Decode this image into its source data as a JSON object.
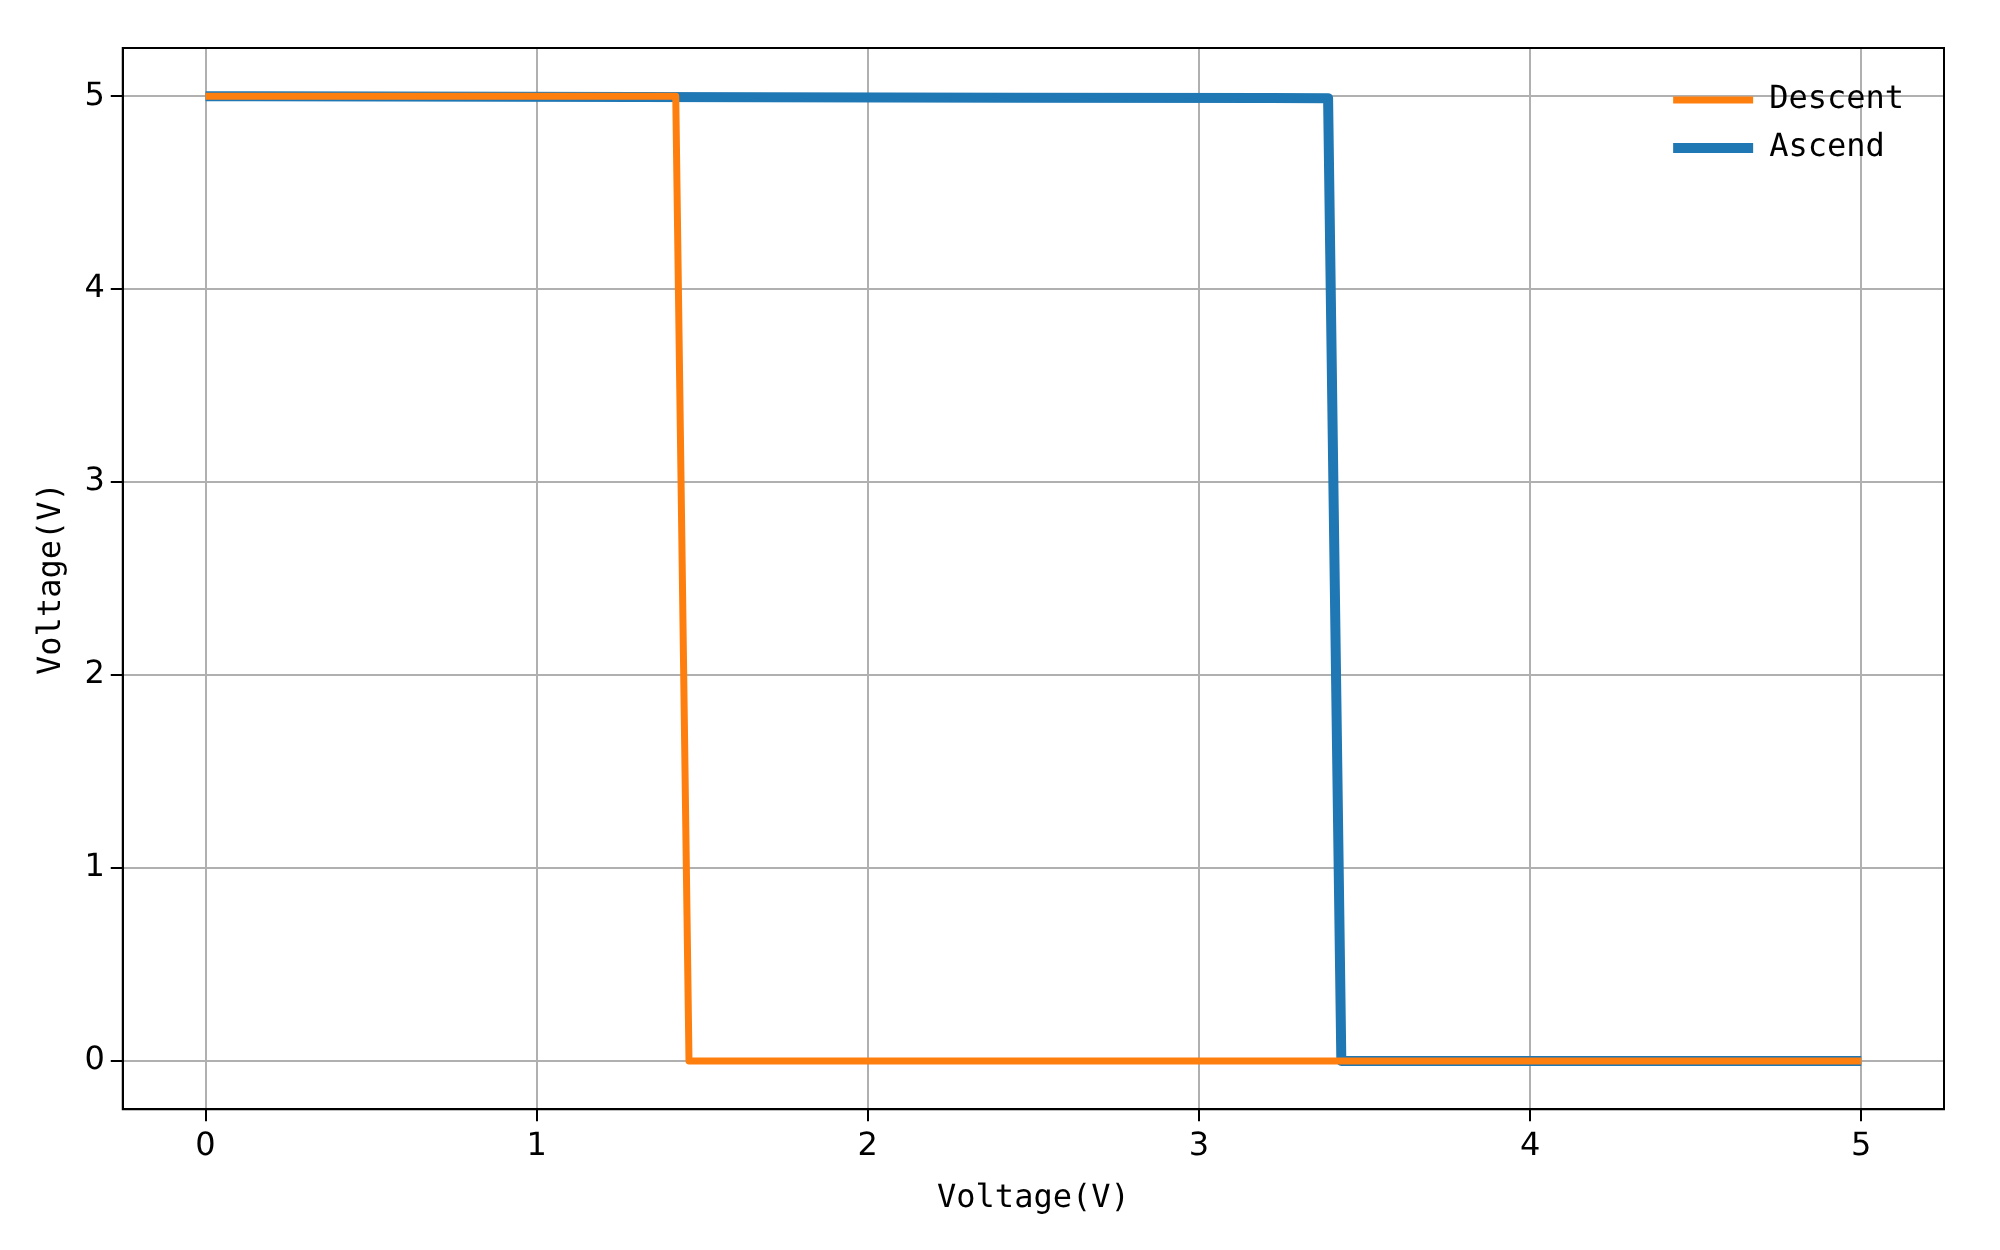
{
  "chart_data": {
    "type": "line",
    "xlabel": "Voltage(V)",
    "ylabel": "Voltage(V)",
    "series": [
      {
        "name": "Ascend",
        "color": "#1f77b4",
        "x": [
          0,
          3.39,
          3.43,
          5
        ],
        "values": [
          5,
          4.99,
          0,
          0
        ]
      },
      {
        "name": "Descent",
        "color": "#ff7f0e",
        "x": [
          0,
          1.42,
          1.46,
          5
        ],
        "values": [
          5,
          5,
          0,
          0
        ]
      }
    ],
    "xlim": [
      -0.25,
      5.25
    ],
    "xticks": [
      0,
      1,
      2,
      3,
      4,
      5
    ],
    "ylim": [
      -0.25,
      5.25
    ],
    "yticks": [
      0,
      1,
      2,
      3,
      4,
      5
    ],
    "grid": true,
    "legend": "top right",
    "marker": "none",
    "line_style": "solid"
  }
}
